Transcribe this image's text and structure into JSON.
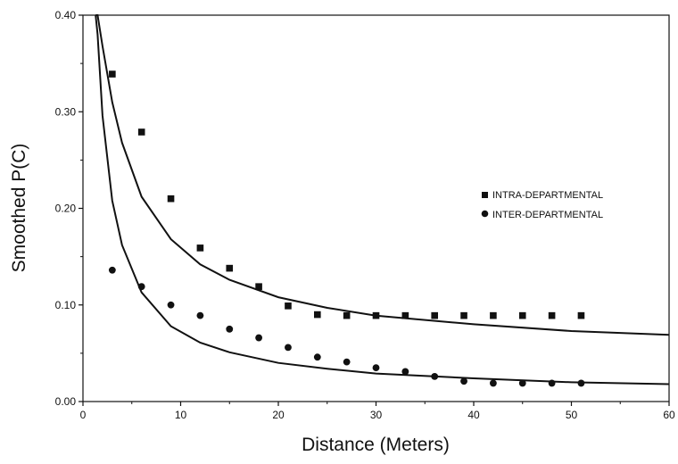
{
  "chart_data": {
    "type": "scatter",
    "xlabel": "Distance (Meters)",
    "ylabel": "Smoothed P(C)",
    "xlim": [
      0,
      60
    ],
    "ylim": [
      0,
      0.4
    ],
    "x_ticks": [
      0,
      10,
      20,
      30,
      40,
      50,
      60
    ],
    "x_tick_labels": [
      "0",
      "10",
      "20",
      "30",
      "40",
      "50",
      "60"
    ],
    "y_ticks": [
      0,
      0.1,
      0.2,
      0.3,
      0.4
    ],
    "y_tick_labels": [
      "0.00",
      "0.10",
      "0.20",
      "0.30",
      "0.40"
    ],
    "grid": false,
    "legend_position": "right",
    "series": [
      {
        "name": "INTRA-DEPARTMENTAL",
        "marker": "square",
        "x": [
          3,
          6,
          9,
          12,
          15,
          18,
          21,
          24,
          27,
          30,
          33,
          36,
          39,
          42,
          45,
          48,
          51
        ],
        "y": [
          0.339,
          0.279,
          0.21,
          0.159,
          0.138,
          0.119,
          0.099,
          0.09,
          0.089,
          0.089,
          0.089,
          0.089,
          0.089,
          0.089,
          0.089,
          0.089,
          0.089
        ]
      },
      {
        "name": "INTER-DEPARTMENTAL",
        "marker": "circle",
        "x": [
          3,
          6,
          9,
          12,
          15,
          18,
          21,
          24,
          27,
          30,
          33,
          36,
          39,
          42,
          45,
          48,
          51
        ],
        "y": [
          0.136,
          0.119,
          0.1,
          0.089,
          0.075,
          0.066,
          0.056,
          0.046,
          0.041,
          0.035,
          0.031,
          0.026,
          0.021,
          0.019,
          0.019,
          0.019,
          0.019
        ]
      }
    ],
    "fit_curves": [
      {
        "x": [
          1.3,
          1.5,
          2,
          3,
          4,
          6,
          9,
          12,
          15,
          20,
          25,
          30,
          40,
          50,
          60
        ],
        "y": [
          0.4,
          0.4,
          0.368,
          0.31,
          0.268,
          0.212,
          0.168,
          0.142,
          0.126,
          0.108,
          0.097,
          0.089,
          0.08,
          0.073,
          0.069
        ]
      },
      {
        "x": [
          1.3,
          1.5,
          2,
          3,
          4,
          6,
          9,
          12,
          15,
          20,
          25,
          30,
          40,
          50,
          60
        ],
        "y": [
          0.4,
          0.38,
          0.296,
          0.208,
          0.162,
          0.113,
          0.078,
          0.061,
          0.051,
          0.04,
          0.034,
          0.029,
          0.024,
          0.02,
          0.018
        ]
      }
    ]
  }
}
